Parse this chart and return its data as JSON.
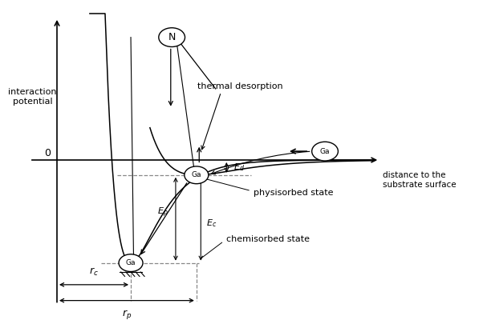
{
  "bg_color": "#ffffff",
  "lc": "#000000",
  "dc": "#888888",
  "figsize": [
    6.02,
    4.0
  ],
  "dpi": 100,
  "xlim": [
    -0.6,
    6.2
  ],
  "ylim": [
    -3.8,
    3.8
  ],
  "rc": 1.35,
  "rp": 2.55,
  "chemi_depth": 2.6,
  "physi_depth": 0.38,
  "chemi_morse_a": 2.0,
  "physi_morse_a": 1.2,
  "n_x": 2.1,
  "n_y": 3.1,
  "ga_right_x": 4.9,
  "ga_right_y": 0.22,
  "ga_circle_r": 0.22,
  "n_circle_r": 0.24,
  "hatch_lines": 5
}
